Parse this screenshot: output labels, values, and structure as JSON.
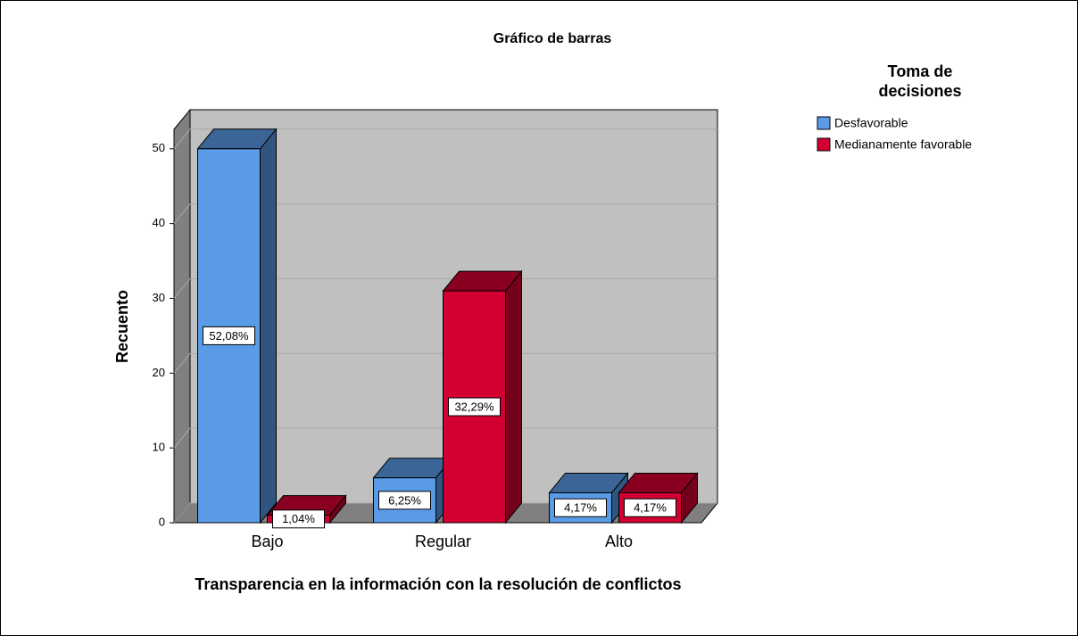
{
  "chart_data": {
    "type": "bar3d",
    "title": "Gráfico de barras",
    "x_label": "Transparencia en la información con la resolución de conflictos",
    "y_label": "Recuento",
    "legend_title": "Toma de decisiones",
    "legend_position": "upper right",
    "grid": true,
    "categories": [
      "Bajo",
      "Regular",
      "Alto"
    ],
    "series": [
      {
        "name": "Desfavorable",
        "color": "#5a9be6",
        "values": [
          50,
          6,
          4
        ],
        "percents": [
          52.08,
          6.25,
          4.17
        ],
        "percent_labels": [
          "52,08%",
          "6,25%",
          "4,17%"
        ]
      },
      {
        "name": "Medianamente favorable",
        "color": "#d20032",
        "values": [
          1,
          31,
          4
        ],
        "percents": [
          1.04,
          32.29,
          4.17
        ],
        "percent_labels": [
          "1,04%",
          "32,29%",
          "4,17%"
        ]
      }
    ],
    "ylim": [
      0,
      52.6
    ],
    "yticks": [
      0,
      10,
      20,
      30,
      40,
      50
    ]
  }
}
